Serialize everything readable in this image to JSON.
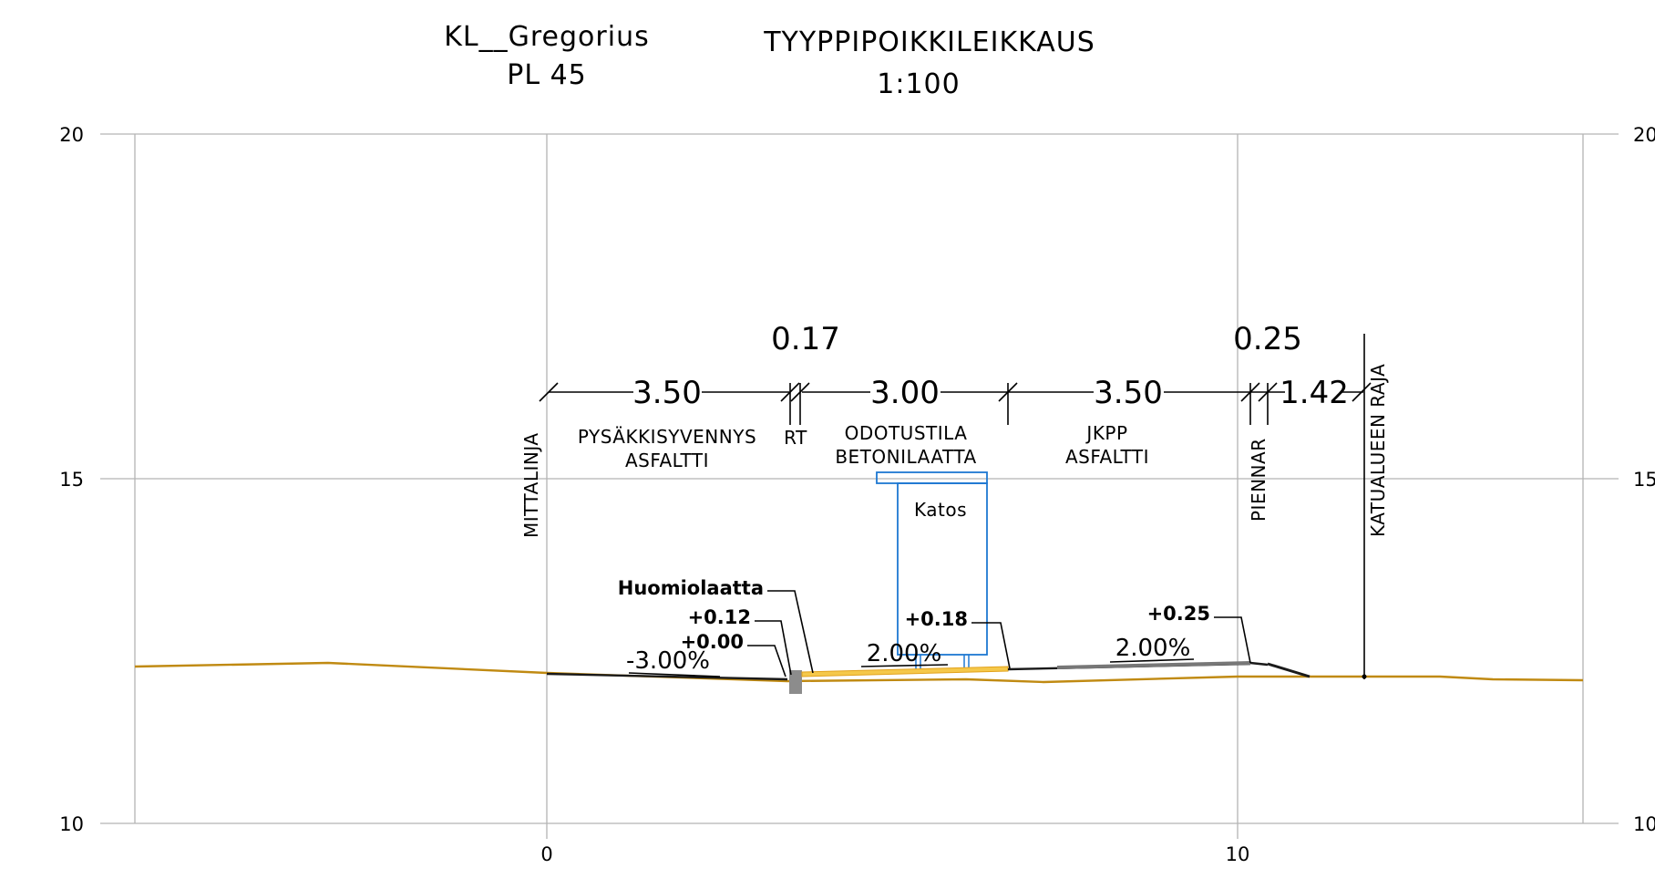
{
  "header": {
    "project_name": "KL__Gregorius",
    "station": "PL 45",
    "drawing_title": "TYYPPIPOIKKILEIKKAUS",
    "scale": "1:100"
  },
  "axes": {
    "y_ticks": [
      "20",
      "15",
      "10"
    ],
    "x_ticks": [
      "0",
      "10"
    ]
  },
  "dimensions": {
    "segments": [
      "3.50",
      "3.00",
      "3.50",
      "1.42"
    ],
    "small_segments": [
      "0.17",
      "0.25"
    ]
  },
  "zones": {
    "pysakki_line1": "PYSÄKKISYVENNYS",
    "pysakki_line2": "ASFALTTI",
    "rt": "RT",
    "odotus_line1": "ODOTUSTILA",
    "odotus_line2": "BETONILAATTA",
    "jkpp_line1": "JKPP",
    "jkpp_line2": "ASFALTTI"
  },
  "vertical_labels": {
    "mittalinja": "MITTALINJA",
    "piennar": "PIENNAR",
    "katualue": "KATUALUEEN RAJA"
  },
  "shelter": {
    "label": "Katos",
    "color": "#1e78d2"
  },
  "annotations": {
    "huomiolaatta": "Huomiolaatta",
    "h012": "+0.12",
    "h000": "+0.00",
    "h018": "+0.18",
    "h025": "+0.25"
  },
  "slopes": {
    "pysakki": "-3.00%",
    "odotus": "2.00%",
    "jkpp": "2.00%"
  },
  "colors": {
    "ground": "#c08a12",
    "grid": "#b4b4b4",
    "shelter": "#1e78d2",
    "tile_fill": "#f5c84a",
    "curb": "#8c8c8c"
  }
}
